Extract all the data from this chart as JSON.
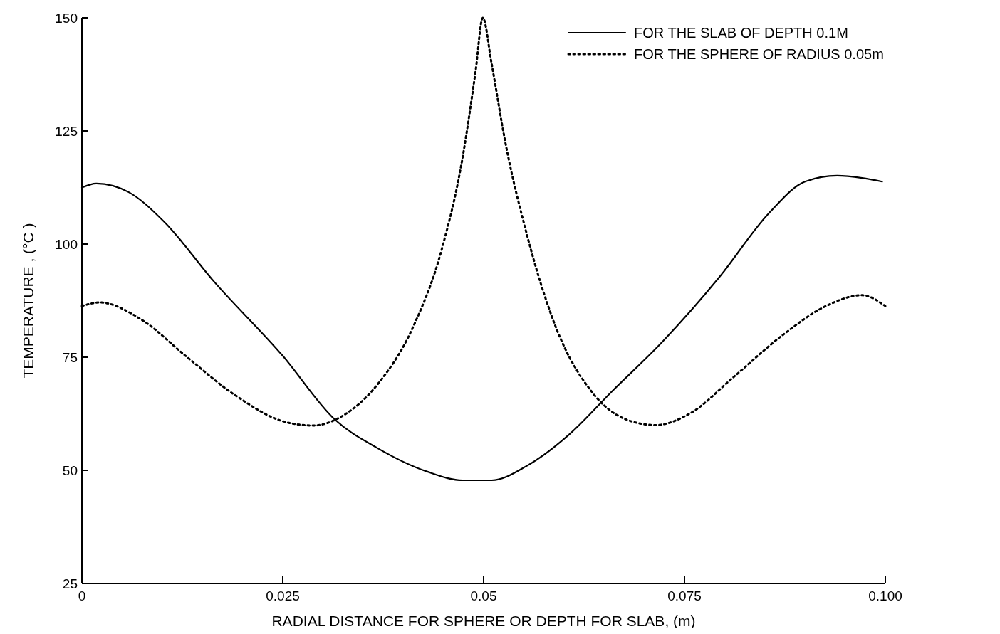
{
  "chart_data": {
    "type": "line",
    "xlabel": "RADIAL DISTANCE FOR SPHERE OR DEPTH FOR SLAB, (m)",
    "ylabel": "TEMPERATURE , (°C )",
    "xlim": [
      0,
      0.1
    ],
    "ylim": [
      25,
      150
    ],
    "xticks": [
      0,
      0.025,
      0.05,
      0.075,
      {
        "value": 0.1,
        "label": "0.100"
      }
    ],
    "yticks": [
      25,
      50,
      75,
      100,
      125,
      150
    ],
    "grid": false,
    "legend": "top right",
    "series": [
      {
        "name": "FOR THE SLAB OF DEPTH 0.1M",
        "color": "#000000",
        "line_style": "solid",
        "x": [
          0,
          0.0018,
          0.0058,
          0.0102,
          0.0164,
          0.025,
          0.0315,
          0.0368,
          0.043,
          0.0474,
          0.051,
          0.0554,
          0.0607,
          0.066,
          0.0723,
          0.0793,
          0.0855,
          0.09,
          0.094,
          0.0971,
          0.0996
        ],
        "values": [
          112.5,
          113.4,
          111.5,
          105,
          91.8,
          75.3,
          61.2,
          54.9,
          49.7,
          47.8,
          47.8,
          51,
          58,
          67.5,
          78.5,
          92.6,
          106.8,
          113.8,
          115.1,
          114.6,
          113.8
        ]
      },
      {
        "name": "FOR THE SPHERE OF RADIUS 0.05m",
        "color": "#000000",
        "line_style": "dotted",
        "x": [
          0,
          0.0022,
          0.0075,
          0.0129,
          0.019,
          0.0253,
          0.0288,
          0.0324,
          0.0368,
          0.0412,
          0.0448,
          0.0474,
          0.049,
          0.0499,
          0.051,
          0.0527,
          0.0554,
          0.059,
          0.0634,
          0.0678,
          0.0714,
          0.0758,
          0.0811,
          0.0873,
          0.0926,
          0.0971,
          0.1
        ],
        "values": [
          86.3,
          87.1,
          83.2,
          75.3,
          66.7,
          60.7,
          59.9,
          62,
          69,
          81.6,
          98.9,
          119.3,
          138.2,
          150,
          139.8,
          122.5,
          102,
          81.6,
          67.5,
          61.2,
          60,
          62.7,
          70.6,
          80,
          86.3,
          88.7,
          86.3
        ]
      }
    ]
  }
}
